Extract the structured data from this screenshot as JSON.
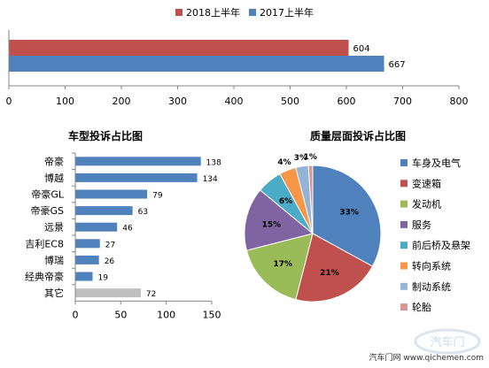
{
  "chart_data": [
    {
      "type": "bar",
      "orientation": "horizontal",
      "title": "",
      "legend": {
        "placement": "top",
        "entries": [
          "2018上半年",
          "2017上半年"
        ]
      },
      "categories": [
        ""
      ],
      "series": [
        {
          "name": "2018上半年",
          "values": [
            604
          ],
          "color": "#c0504d"
        },
        {
          "name": "2017上半年",
          "values": [
            667
          ],
          "color": "#4f81bd"
        }
      ],
      "xlim": [
        0,
        800
      ],
      "x_ticks": [
        0,
        100,
        200,
        300,
        400,
        500,
        600,
        700,
        800
      ],
      "grid": false
    },
    {
      "type": "bar",
      "orientation": "horizontal",
      "title": "车型投诉占比图",
      "categories": [
        "帝豪",
        "博越",
        "帝豪GL",
        "帝豪GS",
        "远景",
        "吉利EC8",
        "博瑞",
        "经典帝豪",
        "其它"
      ],
      "values": [
        138,
        134,
        79,
        63,
        46,
        27,
        26,
        19,
        72
      ],
      "colors": [
        "#4f81bd",
        "#4f81bd",
        "#4f81bd",
        "#4f81bd",
        "#4f81bd",
        "#4f81bd",
        "#4f81bd",
        "#4f81bd",
        "#bfbfbf"
      ],
      "xlim": [
        0,
        150
      ],
      "x_ticks": [
        0,
        50,
        100,
        150
      ],
      "grid": false
    },
    {
      "type": "pie",
      "title": "质量层面投诉占比图",
      "labels": [
        "车身及电气",
        "变速箱",
        "发动机",
        "服务",
        "前后桥及悬架",
        "转向系统",
        "制动系统",
        "轮胎"
      ],
      "values": [
        33,
        21,
        17,
        15,
        6,
        4,
        3,
        1
      ],
      "value_labels": [
        "33%",
        "21%",
        "17%",
        "15%",
        "6%",
        "4%",
        "3%",
        "1%"
      ],
      "colors": [
        "#4f81bd",
        "#c0504d",
        "#9bbb59",
        "#8064a2",
        "#4bacc6",
        "#f79646",
        "#95b3d7",
        "#d99694"
      ],
      "legend": {
        "placement": "right"
      }
    }
  ],
  "watermark": {
    "text": "汽车门网 www.qichemen.com",
    "logo_text": "汽车门"
  }
}
